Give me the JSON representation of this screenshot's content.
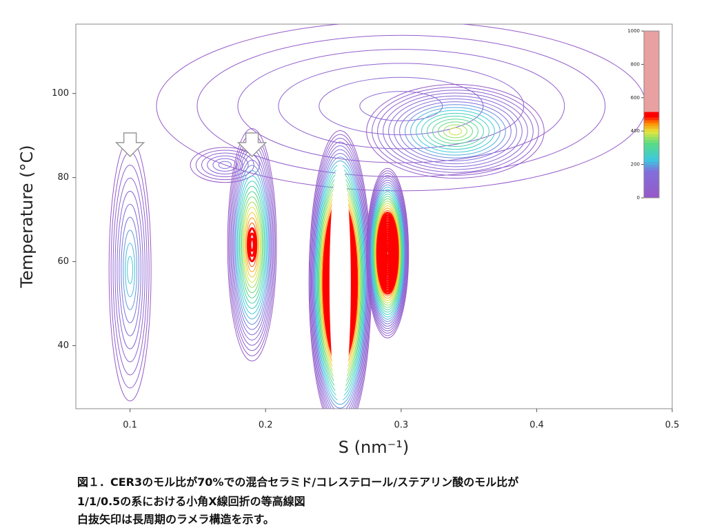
{
  "chart_data": {
    "type": "contour",
    "xlabel": "S (nm⁻¹)",
    "ylabel": "Temperature (°C)",
    "xlim": [
      0.06,
      0.5
    ],
    "xticks": [
      0.1,
      0.2,
      0.3,
      0.4,
      0.5
    ],
    "ylim": [
      25,
      116.5
    ],
    "yticks": [
      40,
      60,
      80,
      100
    ],
    "colorbar_lim": [
      0,
      1000
    ],
    "colorbar_ticks": [
      0,
      200,
      400,
      600,
      800,
      1000
    ],
    "peaks": [
      {
        "s": 0.3,
        "temperature": 97,
        "intensity": 120,
        "width": 0.36,
        "height": 40
      },
      {
        "s": 0.34,
        "temperature": 91,
        "intensity": 400,
        "width": 0.13,
        "height": 22
      },
      {
        "s": 0.17,
        "temperature": 83,
        "intensity": 160,
        "width": 0.05,
        "height": 8
      },
      {
        "s": 0.1,
        "temperature": 58,
        "intensity": 260,
        "width": 0.03,
        "height": 62
      },
      {
        "s": 0.19,
        "temperature": 64,
        "intensity": 560,
        "width": 0.035,
        "height": 55
      },
      {
        "s": 0.255,
        "temperature": 55,
        "intensity": 1000,
        "width": 0.045,
        "height": 72
      },
      {
        "s": 0.29,
        "temperature": 62,
        "intensity": 900,
        "width": 0.03,
        "height": 40
      }
    ],
    "arrows": [
      {
        "s": 0.1,
        "temperature": 87
      },
      {
        "s": 0.19,
        "temperature": 87
      }
    ]
  },
  "caption": [
    "図１．CER3のモル比が70%での混合セラミド/コレステロール/ステアリン酸のモル比が",
    "1/1/0.5の系における小角X線回折の等高線図",
    "白抜矢印は長周期のラメラ構造を示す。"
  ]
}
